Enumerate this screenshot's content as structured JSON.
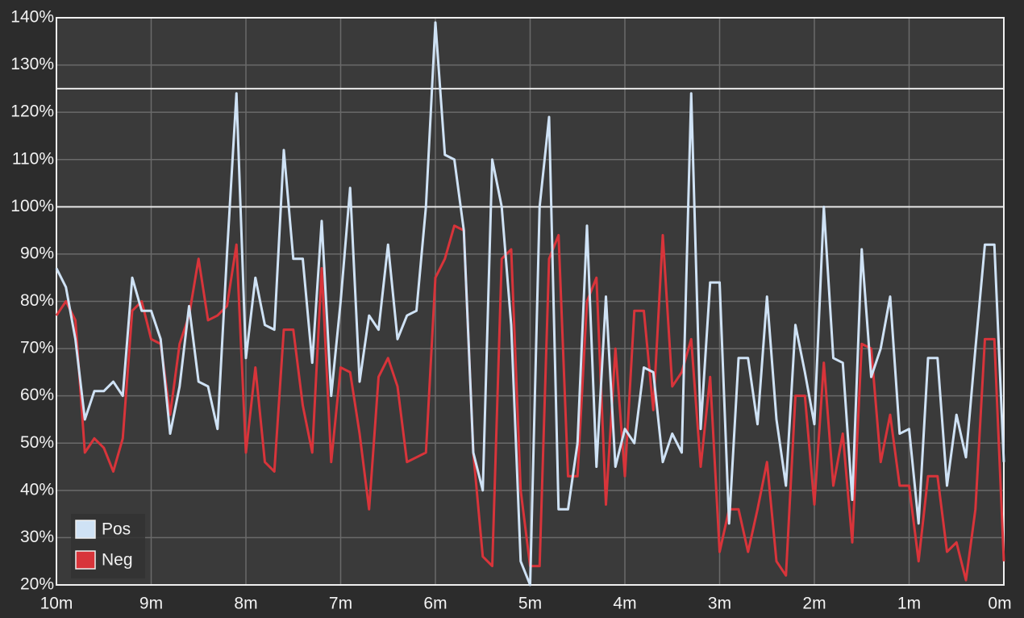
{
  "chart_data": {
    "type": "line",
    "x": [
      10,
      9.9,
      9.8,
      9.7,
      9.6,
      9.5,
      9.4,
      9.3,
      9.2,
      9.1,
      9,
      8.9,
      8.8,
      8.7,
      8.6,
      8.5,
      8.4,
      8.3,
      8.2,
      8.1,
      8,
      7.9,
      7.8,
      7.7,
      7.6,
      7.5,
      7.4,
      7.3,
      7.2,
      7.1,
      7,
      6.9,
      6.8,
      6.7,
      6.6,
      6.5,
      6.4,
      6.3,
      6.2,
      6.1,
      6,
      5.9,
      5.8,
      5.7,
      5.6,
      5.5,
      5.4,
      5.3,
      5.2,
      5.1,
      5,
      4.9,
      4.8,
      4.7,
      4.6,
      4.5,
      4.4,
      4.3,
      4.2,
      4.1,
      4,
      3.9,
      3.8,
      3.7,
      3.6,
      3.5,
      3.4,
      3.3,
      3.2,
      3.1,
      3,
      2.9,
      2.8,
      2.7,
      2.6,
      2.5,
      2.4,
      2.3,
      2.2,
      2.1,
      2,
      1.9,
      1.8,
      1.7,
      1.6,
      1.5,
      1.4,
      1.3,
      1.2,
      1.1,
      1,
      0.9,
      0.8,
      0.7,
      0.6,
      0.5,
      0.4,
      0.3,
      0.2,
      0.1,
      0
    ],
    "series": [
      {
        "name": "Pos",
        "color": "#cfe2f5",
        "values": [
          87,
          83,
          72,
          55,
          61,
          61,
          63,
          60,
          85,
          78,
          78,
          72,
          52,
          62,
          79,
          63,
          62,
          53,
          90,
          124,
          68,
          85,
          75,
          74,
          112,
          89,
          89,
          67,
          97,
          60,
          80,
          104,
          63,
          77,
          74,
          92,
          72,
          77,
          78,
          100,
          139,
          111,
          110,
          95,
          48,
          40,
          110,
          100,
          75,
          25,
          20,
          100,
          119,
          36,
          36,
          50,
          96,
          45,
          81,
          45,
          53,
          50,
          66,
          65,
          46,
          52,
          48,
          124,
          53,
          84,
          84,
          33,
          68,
          68,
          54,
          81,
          55,
          41,
          75,
          65,
          54,
          100,
          68,
          67,
          38,
          91,
          64,
          70,
          81,
          52,
          53,
          33,
          68,
          68,
          41,
          56,
          47,
          70,
          92,
          92,
          46
        ]
      },
      {
        "name": "Neg",
        "color": "#d8343a",
        "values": [
          77,
          80,
          76,
          48,
          51,
          49,
          44,
          51,
          78,
          80,
          72,
          71,
          56,
          71,
          77,
          89,
          76,
          77,
          79,
          92,
          48,
          66,
          46,
          44,
          74,
          74,
          58,
          48,
          87,
          46,
          66,
          65,
          52,
          36,
          64,
          68,
          62,
          46,
          47,
          48,
          85,
          89,
          96,
          95,
          48,
          26,
          24,
          89,
          91,
          40,
          24,
          24,
          89,
          94,
          43,
          43,
          80,
          85,
          37,
          70,
          43,
          78,
          78,
          57,
          94,
          62,
          65,
          72,
          45,
          64,
          27,
          36,
          36,
          27,
          36,
          46,
          25,
          22,
          60,
          60,
          37,
          67,
          41,
          52,
          29,
          71,
          70,
          46,
          56,
          41,
          41,
          25,
          43,
          43,
          27,
          29,
          21,
          36,
          72,
          72,
          25
        ]
      }
    ],
    "xlim": [
      10,
      0
    ],
    "xticks": [
      {
        "value": 10,
        "label": "10m"
      },
      {
        "value": 9,
        "label": "9m"
      },
      {
        "value": 8,
        "label": "8m"
      },
      {
        "value": 7,
        "label": "7m"
      },
      {
        "value": 6,
        "label": "6m"
      },
      {
        "value": 5,
        "label": "5m"
      },
      {
        "value": 4,
        "label": "4m"
      },
      {
        "value": 3,
        "label": "3m"
      },
      {
        "value": 2,
        "label": "2m"
      },
      {
        "value": 1,
        "label": "1m"
      },
      {
        "value": 0,
        "label": "0m"
      }
    ],
    "ylim": [
      20,
      140
    ],
    "yticks": [
      {
        "value": 20,
        "label": "20%"
      },
      {
        "value": 30,
        "label": "30%"
      },
      {
        "value": 40,
        "label": "40%"
      },
      {
        "value": 50,
        "label": "50%"
      },
      {
        "value": 60,
        "label": "60%"
      },
      {
        "value": 70,
        "label": "70%"
      },
      {
        "value": 80,
        "label": "80%"
      },
      {
        "value": 90,
        "label": "90%"
      },
      {
        "value": 100,
        "label": "100%"
      },
      {
        "value": 110,
        "label": "110%"
      },
      {
        "value": 120,
        "label": "120%"
      },
      {
        "value": 130,
        "label": "130%"
      },
      {
        "value": 140,
        "label": "140%"
      }
    ],
    "reference_lines": [
      100,
      125
    ],
    "grid": true,
    "legend": "bottom-left"
  }
}
